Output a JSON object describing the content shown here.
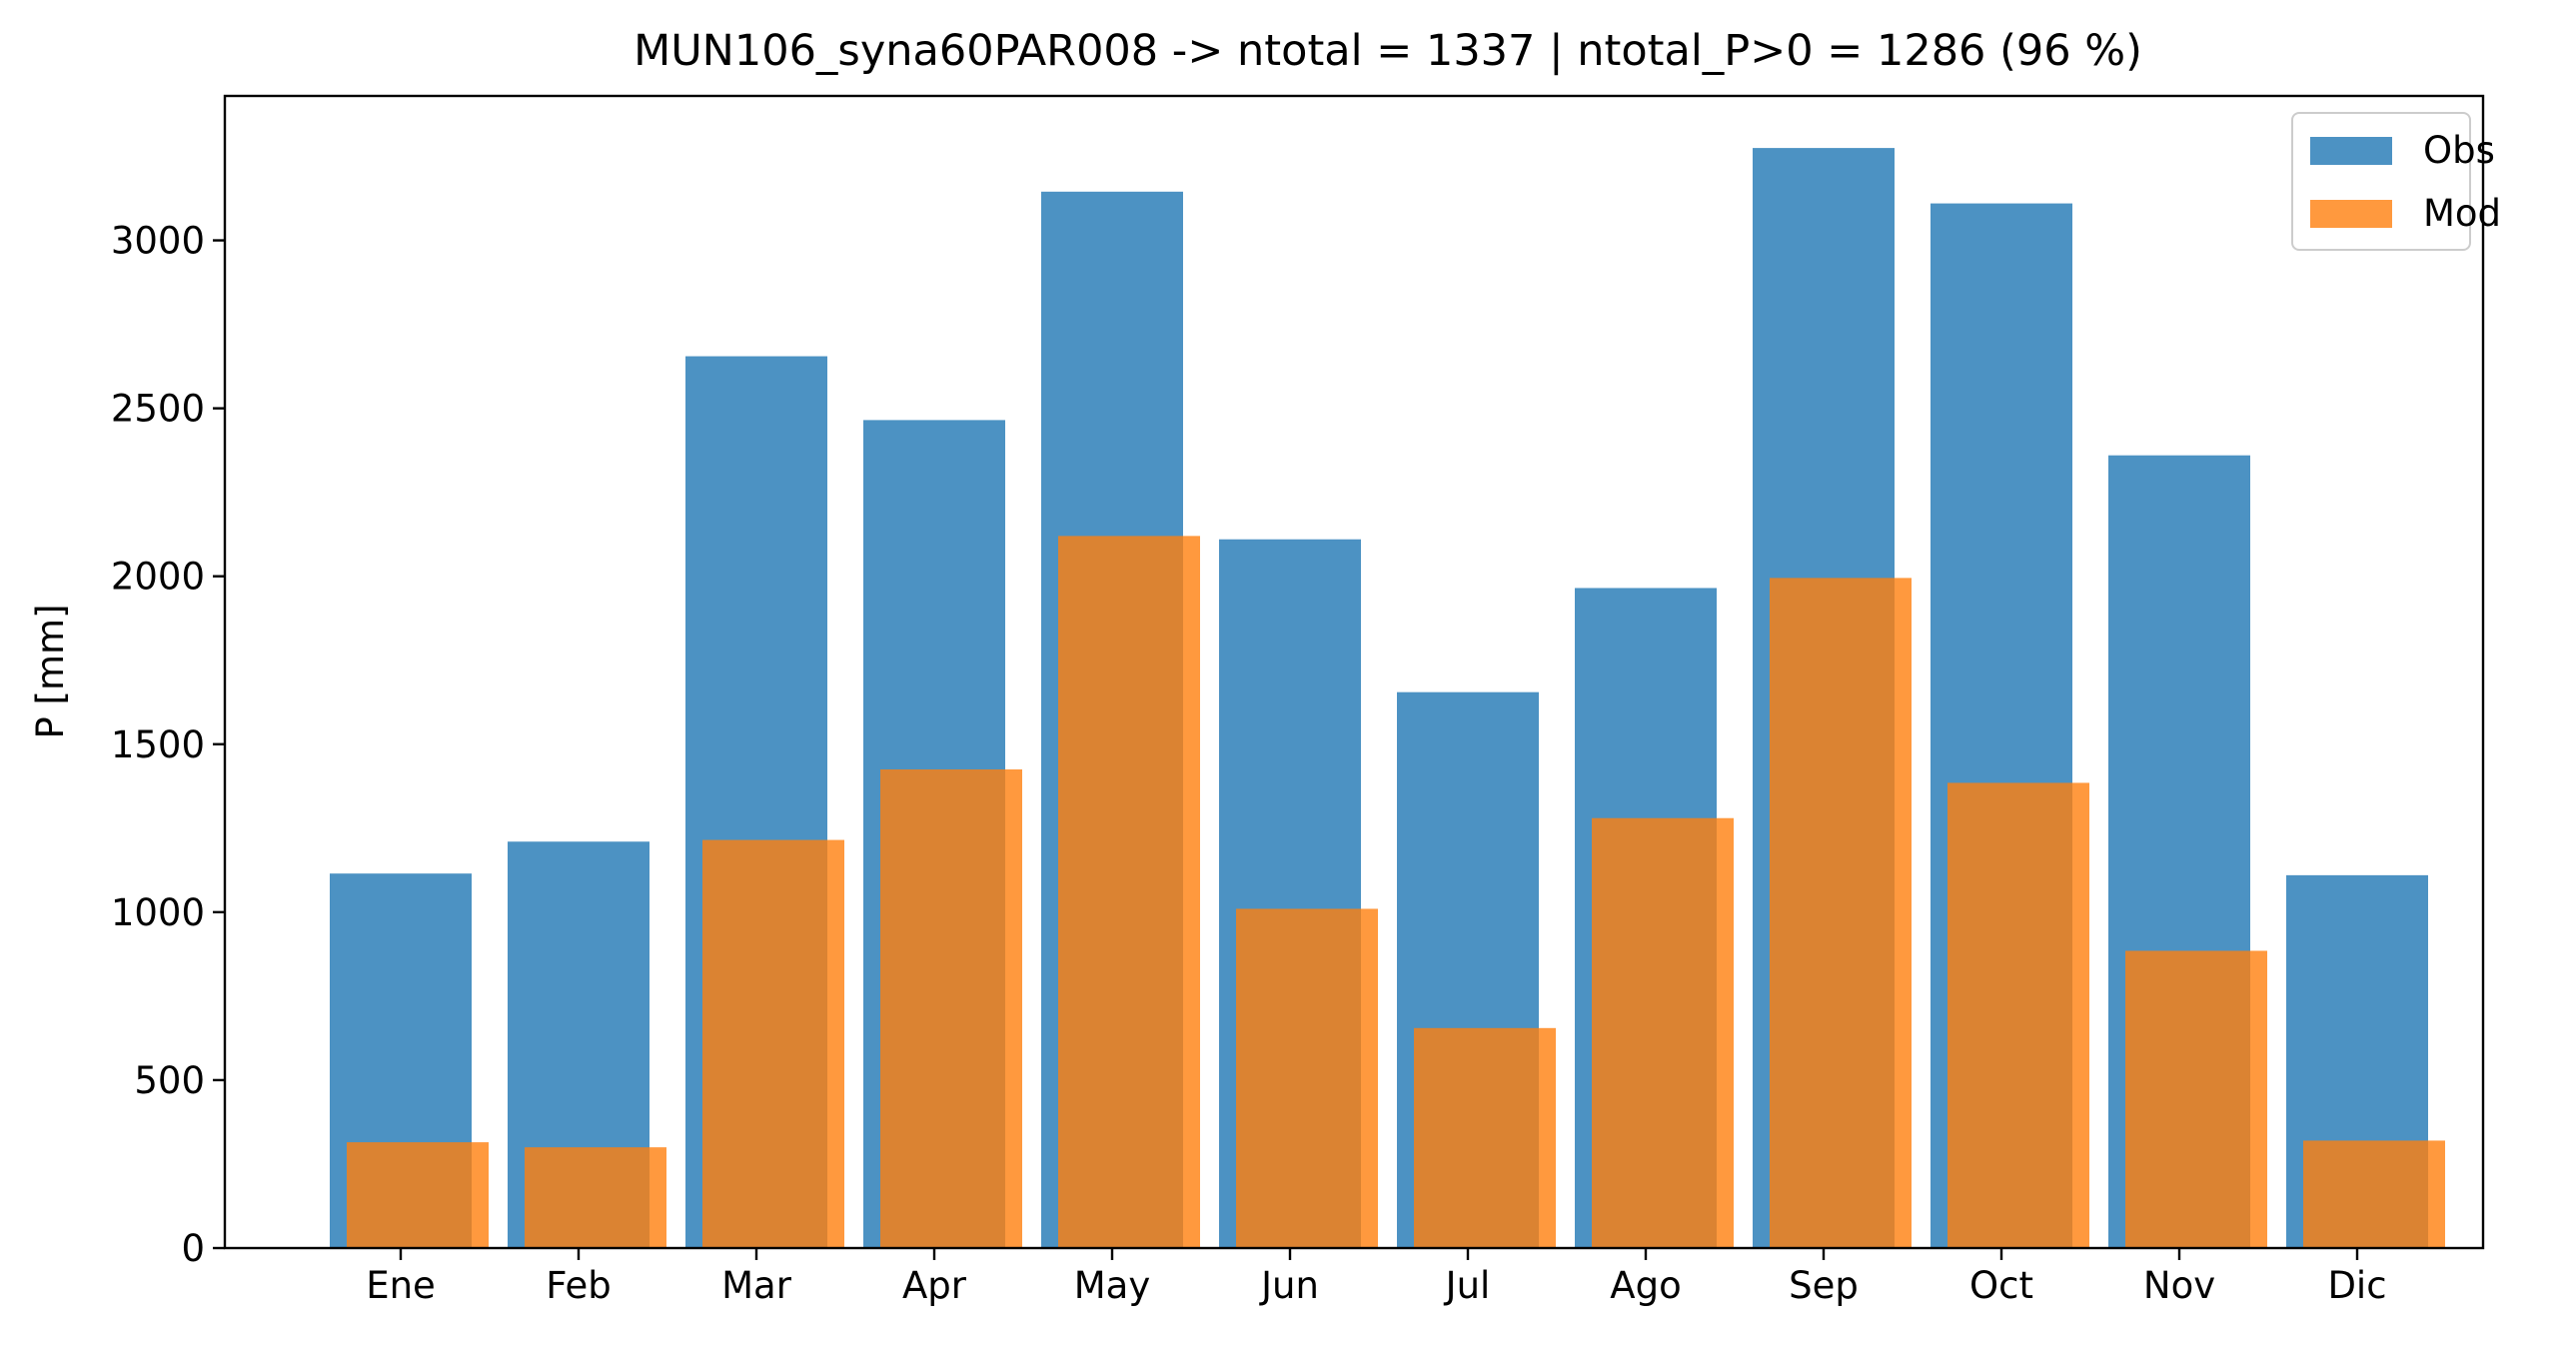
{
  "chart_data": {
    "type": "bar",
    "title": "MUN106_syna60PAR008 -> ntotal = 1337 | ntotal_P>0 = 1286 (96 %)",
    "xlabel": "",
    "ylabel": "P [mm]",
    "categories": [
      "Ene",
      "Feb",
      "Mar",
      "Apr",
      "May",
      "Jun",
      "Jul",
      "Ago",
      "Sep",
      "Oct",
      "Nov",
      "Dic"
    ],
    "series": [
      {
        "name": "Obs",
        "color": "#1f77b4",
        "values": [
          1115,
          1210,
          2655,
          2465,
          3145,
          2110,
          1655,
          1965,
          3275,
          3110,
          2360,
          1110
        ]
      },
      {
        "name": "Mod",
        "color": "#ff7f0e",
        "values": [
          315,
          300,
          1215,
          1425,
          2120,
          1010,
          655,
          1280,
          1995,
          1385,
          885,
          320
        ]
      }
    ],
    "ylim": [
      0,
      3430
    ],
    "yticks": [
      0,
      500,
      1000,
      1500,
      2000,
      2500,
      3000
    ],
    "grid": false,
    "legend": "top-right"
  }
}
